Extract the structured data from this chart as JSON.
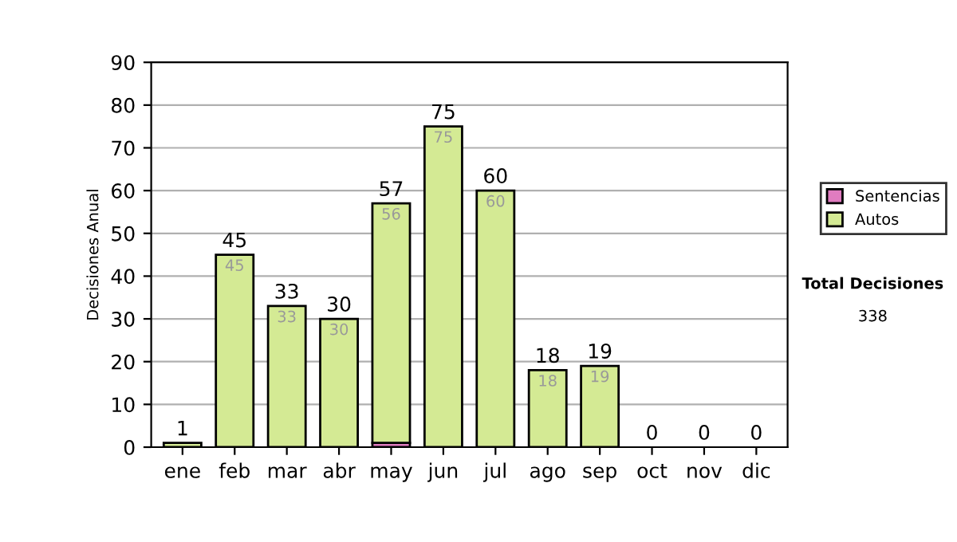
{
  "chart_data": {
    "type": "bar",
    "stacked": true,
    "ylabel": "Decisiones Anual",
    "categories": [
      "ene",
      "feb",
      "mar",
      "abr",
      "may",
      "jun",
      "jul",
      "ago",
      "sep",
      "oct",
      "nov",
      "dic"
    ],
    "series": [
      {
        "name": "Sentencias",
        "color": "#e07cc0",
        "values": [
          0,
          0,
          0,
          0,
          1,
          0,
          0,
          0,
          0,
          0,
          0,
          0
        ]
      },
      {
        "name": "Autos",
        "color": "#d4ea94",
        "values": [
          1,
          45,
          33,
          30,
          56,
          75,
          60,
          18,
          19,
          0,
          0,
          0
        ],
        "value_labels": [
          null,
          "45",
          "33",
          "30",
          "56",
          "75",
          "60",
          "18",
          "19",
          null,
          null,
          null
        ]
      }
    ],
    "totals": [
      "1",
      "45",
      "33",
      "30",
      "57",
      "75",
      "60",
      "18",
      "19",
      "0",
      "0",
      "0"
    ],
    "ylim": [
      0,
      90
    ],
    "yticks": [
      0,
      10,
      20,
      30,
      40,
      50,
      60,
      70,
      80,
      90
    ],
    "grid": "y",
    "legend": "right",
    "annotations": [
      "Total Decisiones",
      "338"
    ]
  }
}
